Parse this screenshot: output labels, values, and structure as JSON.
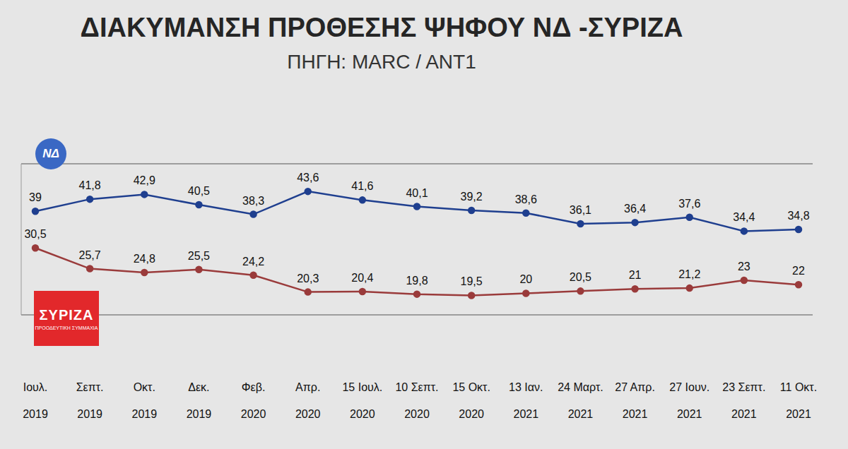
{
  "chart_data": {
    "type": "line",
    "title": "ΔΙΑΚΥΜΑΝΣΗ ΠΡΟΘΕΣΗΣ ΨΗΦΟΥ ΝΔ -ΣΥΡΙΖΑ",
    "subtitle": "ΠΗΓΗ: MARC / ANT1",
    "categories": [
      "Ιουλ. 2019",
      "Σεπτ. 2019",
      "Οκτ. 2019",
      "Δεκ. 2019",
      "Φεβ. 2020",
      "Απρ. 2020",
      "15 Ιουλ. 2020",
      "10 Σεπτ. 2020",
      "15 Οκτ. 2020",
      "13 Ιαν. 2021",
      "24 Μαρτ. 2021",
      "27 Απρ. 2021",
      "27 Ιουν. 2021",
      "23 Σεπτ. 2021",
      "11 Οκτ. 2021"
    ],
    "series": [
      {
        "name": "ΝΔ",
        "color": "#1f3f8f",
        "marker": "circle",
        "values": [
          39,
          41.8,
          42.9,
          40.5,
          38.3,
          43.6,
          41.6,
          40.1,
          39.2,
          38.6,
          36.1,
          36.4,
          37.6,
          34.4,
          34.8
        ],
        "value_labels": [
          "39",
          "41,8",
          "42,9",
          "40,5",
          "38,3",
          "43,6",
          "41,6",
          "40,1",
          "39,2",
          "38,6",
          "36,1",
          "36,4",
          "37,6",
          "34,4",
          "34,8"
        ]
      },
      {
        "name": "ΣΥΡΙΖΑ",
        "color": "#9a3b3b",
        "marker": "circle",
        "values": [
          30.5,
          25.7,
          24.8,
          25.5,
          24.2,
          20.3,
          20.4,
          19.8,
          19.5,
          20,
          20.5,
          21,
          21.2,
          23,
          22
        ],
        "value_labels": [
          "30,5",
          "25,7",
          "24,8",
          "25,5",
          "24,2",
          "20,3",
          "20,4",
          "19,8",
          "19,5",
          "20",
          "20,5",
          "21",
          "21,2",
          "23",
          "22"
        ]
      }
    ],
    "annotations": [
      "ΠΡΟΟΔΕΥΤΙΚΗ ΣΥΜΜΑΧΙΑ"
    ],
    "ylim": [
      15,
      50
    ],
    "yticks": [
      20,
      40
    ],
    "grid": true,
    "data_labels": true,
    "tick_labels": "x",
    "legend": "left"
  }
}
